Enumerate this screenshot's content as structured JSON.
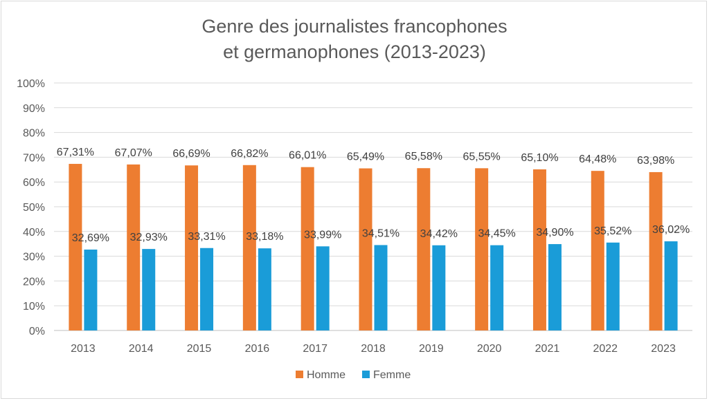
{
  "chart_data": {
    "type": "bar",
    "title_lines": [
      "Genre des journalistes francophones",
      "et germanophones (2013-2023)"
    ],
    "categories": [
      "2013",
      "2014",
      "2015",
      "2016",
      "2017",
      "2018",
      "2019",
      "2020",
      "2021",
      "2022",
      "2023"
    ],
    "series": [
      {
        "name": "Homme",
        "color": "#ed7d31",
        "values": [
          67.31,
          67.07,
          66.69,
          66.82,
          66.01,
          65.49,
          65.58,
          65.55,
          65.1,
          64.48,
          63.98
        ],
        "labels": [
          "67,31%",
          "67,07%",
          "66,69%",
          "66,82%",
          "66,01%",
          "65,49%",
          "65,58%",
          "65,55%",
          "65,10%",
          "64,48%",
          "63,98%"
        ]
      },
      {
        "name": "Femme",
        "color": "#1a9cd8",
        "values": [
          32.69,
          32.93,
          33.31,
          33.18,
          33.99,
          34.51,
          34.42,
          34.45,
          34.9,
          35.52,
          36.02
        ],
        "labels": [
          "32,69%",
          "32,93%",
          "33,31%",
          "33,18%",
          "33,99%",
          "34,51%",
          "34,42%",
          "34,45%",
          "34,90%",
          "35,52%",
          "36,02%"
        ]
      }
    ],
    "y_ticks": [
      "0%",
      "10%",
      "20%",
      "30%",
      "40%",
      "50%",
      "60%",
      "70%",
      "80%",
      "90%",
      "100%"
    ],
    "ylim": [
      0,
      100
    ],
    "grid": true,
    "legend_position": "bottom",
    "xlabel": "",
    "ylabel": ""
  }
}
